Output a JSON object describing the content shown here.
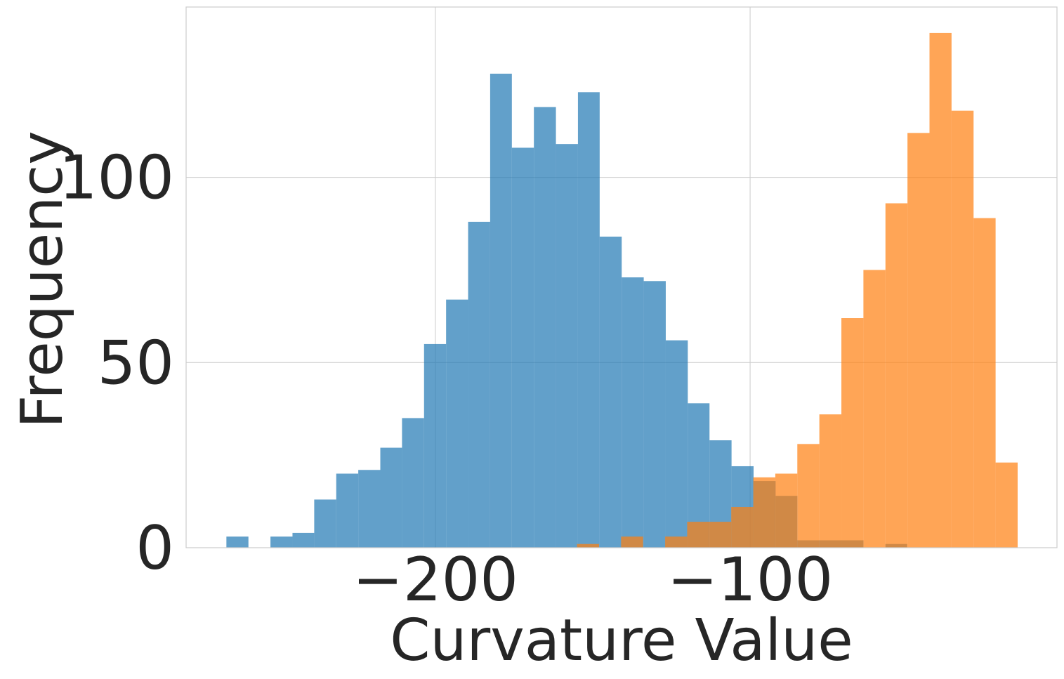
{
  "chart_data": {
    "type": "histogram",
    "title": "",
    "xlabel": "Curvature Value",
    "ylabel": "Frequency",
    "xlim": [
      -279.2,
      -2.5
    ],
    "ylim": [
      0,
      146
    ],
    "xticks": [
      -200,
      -100
    ],
    "xtick_labels": [
      "−200",
      "−100"
    ],
    "yticks": [
      0,
      50,
      100
    ],
    "ytick_labels": [
      "0",
      "50",
      "100"
    ],
    "grid": true,
    "legend": "none",
    "series": [
      {
        "color": "#1f77b4",
        "opacity": 0.7,
        "bins": [
          [
            -266.4,
            -259.4,
            3
          ],
          [
            -259.4,
            -252.4,
            0
          ],
          [
            -252.4,
            -245.4,
            3
          ],
          [
            -245.4,
            -238.5,
            4
          ],
          [
            -238.5,
            -231.5,
            13
          ],
          [
            -231.5,
            -224.5,
            20
          ],
          [
            -224.5,
            -217.5,
            21
          ],
          [
            -217.5,
            -210.6,
            27
          ],
          [
            -210.6,
            -203.6,
            35
          ],
          [
            -203.6,
            -196.6,
            55
          ],
          [
            -196.6,
            -189.6,
            67
          ],
          [
            -189.6,
            -182.6,
            88
          ],
          [
            -182.6,
            -175.7,
            128
          ],
          [
            -175.7,
            -168.7,
            108
          ],
          [
            -168.7,
            -161.7,
            119
          ],
          [
            -161.7,
            -154.7,
            109
          ],
          [
            -154.7,
            -147.8,
            123
          ],
          [
            -147.8,
            -140.8,
            84
          ],
          [
            -140.8,
            -133.8,
            73
          ],
          [
            -133.8,
            -126.8,
            72
          ],
          [
            -126.8,
            -119.8,
            56
          ],
          [
            -119.8,
            -112.9,
            39
          ],
          [
            -112.9,
            -105.9,
            29
          ],
          [
            -105.9,
            -98.9,
            22
          ],
          [
            -98.9,
            -91.9,
            18
          ],
          [
            -91.9,
            -85.0,
            14
          ],
          [
            -85.0,
            -78.0,
            2
          ],
          [
            -78.0,
            -71.0,
            2
          ],
          [
            -71.0,
            -64.0,
            2
          ],
          [
            -64.0,
            -57.0,
            0
          ],
          [
            -57.0,
            -50.1,
            1
          ]
        ]
      },
      {
        "color": "#ff7f0e",
        "opacity": 0.7,
        "bins": [
          [
            -155.0,
            -148.0,
            1
          ],
          [
            -148.0,
            -141.0,
            0
          ],
          [
            -141.0,
            -134.0,
            3
          ],
          [
            -134.0,
            -127.0,
            0
          ],
          [
            -127.0,
            -120.0,
            3
          ],
          [
            -120.0,
            -113.0,
            7
          ],
          [
            -113.0,
            -106.0,
            7
          ],
          [
            -106.0,
            -99.0,
            11
          ],
          [
            -99.0,
            -92.0,
            19
          ],
          [
            -92.0,
            -85.0,
            20
          ],
          [
            -85.0,
            -78.0,
            28
          ],
          [
            -78.0,
            -71.0,
            36
          ],
          [
            -71.0,
            -64.0,
            62
          ],
          [
            -64.0,
            -57.0,
            75
          ],
          [
            -57.0,
            -50.0,
            93
          ],
          [
            -50.0,
            -43.0,
            112
          ],
          [
            -43.0,
            -36.0,
            139
          ],
          [
            -36.0,
            -29.0,
            118
          ],
          [
            -29.0,
            -22.0,
            89
          ],
          [
            -22.0,
            -15.0,
            23
          ]
        ]
      }
    ]
  }
}
